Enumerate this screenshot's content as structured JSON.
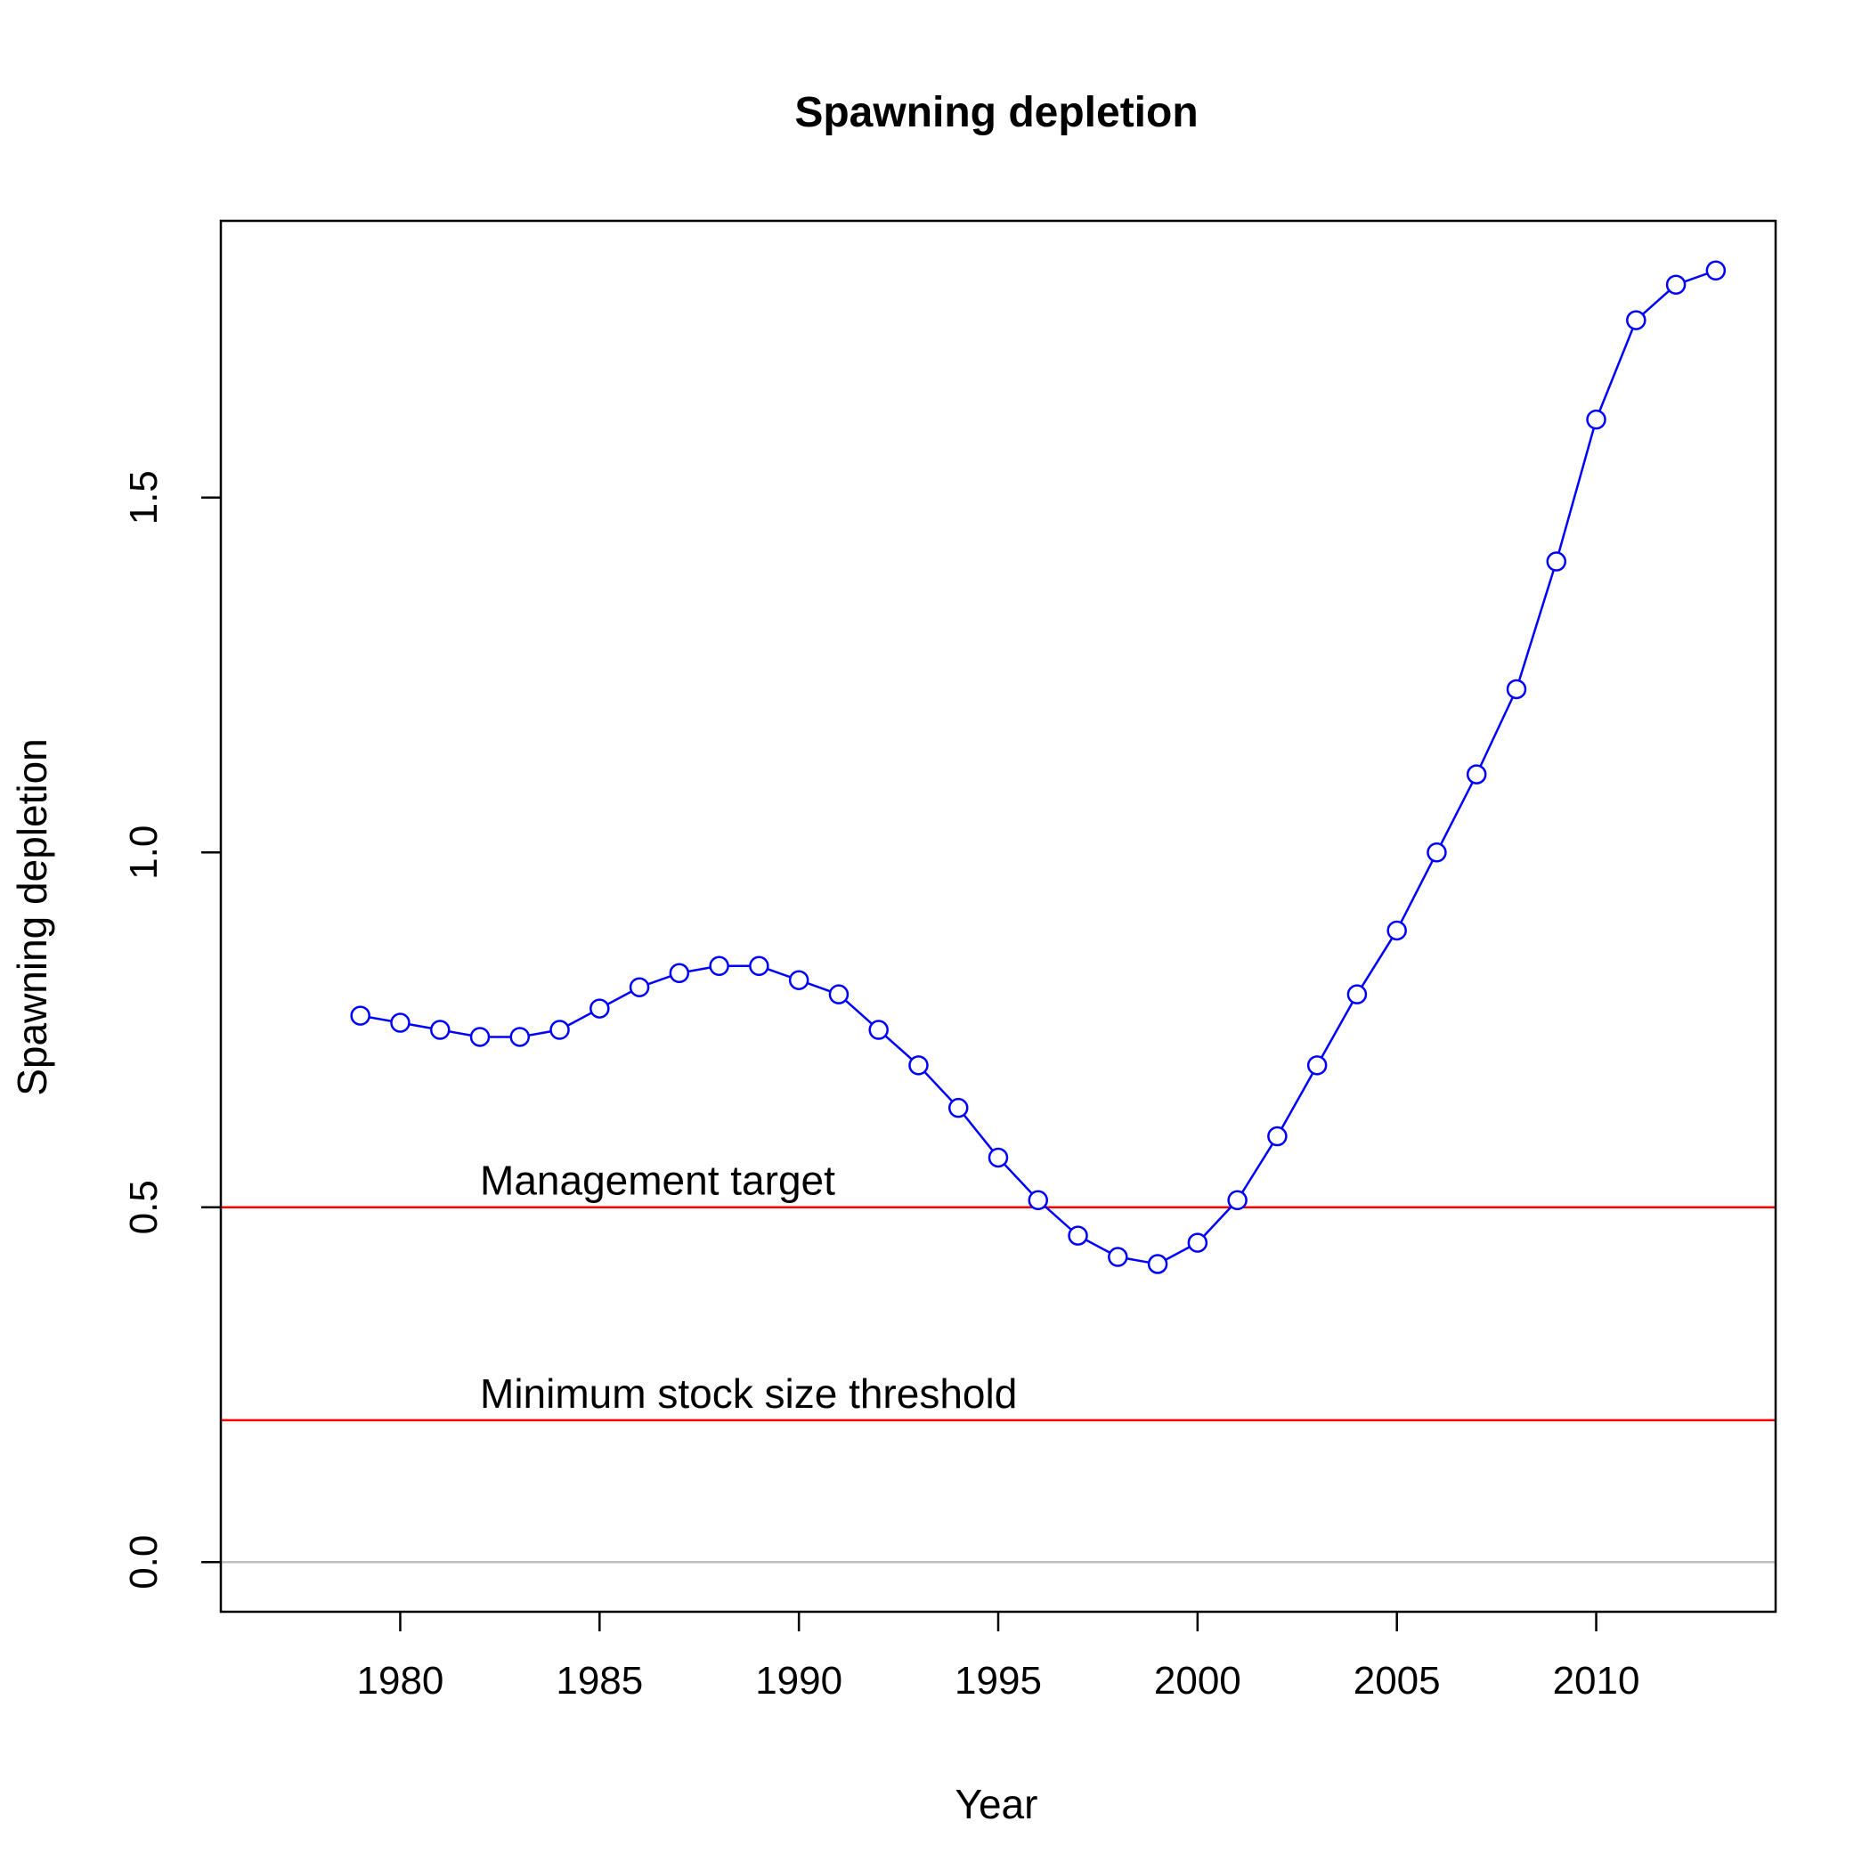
{
  "chart_data": {
    "type": "line",
    "title": "Spawning depletion",
    "xlabel": "Year",
    "ylabel": "Spawning depletion",
    "xlim": [
      1975.5,
      2014.5
    ],
    "ylim": [
      -0.07,
      1.89
    ],
    "x_ticks": [
      "1980",
      "1985",
      "1990",
      "1995",
      "2000",
      "2005",
      "2010"
    ],
    "y_ticks": [
      "0.0",
      "0.5",
      "1.0",
      "1.5"
    ],
    "series": [
      {
        "color": "#0000ff",
        "marker": "open-circle",
        "x": [
          1979,
          1980,
          1981,
          1982,
          1983,
          1984,
          1985,
          1986,
          1987,
          1988,
          1989,
          1990,
          1991,
          1992,
          1993,
          1994,
          1995,
          1996,
          1997,
          1998,
          1999,
          2000,
          2001,
          2002,
          2003,
          2004,
          2005,
          2006,
          2007,
          2008,
          2009,
          2010,
          2011,
          2012,
          2013
        ],
        "y": [
          0.77,
          0.76,
          0.75,
          0.74,
          0.74,
          0.75,
          0.78,
          0.81,
          0.83,
          0.84,
          0.84,
          0.82,
          0.8,
          0.75,
          0.7,
          0.64,
          0.57,
          0.51,
          0.46,
          0.43,
          0.42,
          0.45,
          0.51,
          0.6,
          0.7,
          0.8,
          0.89,
          1.0,
          1.11,
          1.23,
          1.41,
          1.61,
          1.75,
          1.8,
          1.82
        ]
      }
    ],
    "reference_lines": [
      {
        "y": 0.5,
        "color": "#ff0000",
        "label": "Management target"
      },
      {
        "y": 0.2,
        "color": "#ff0000",
        "label": "Minimum stock size threshold"
      },
      {
        "y": 0.0,
        "color": "#bebebe",
        "label": ""
      }
    ],
    "grid": false,
    "legend": "none"
  }
}
